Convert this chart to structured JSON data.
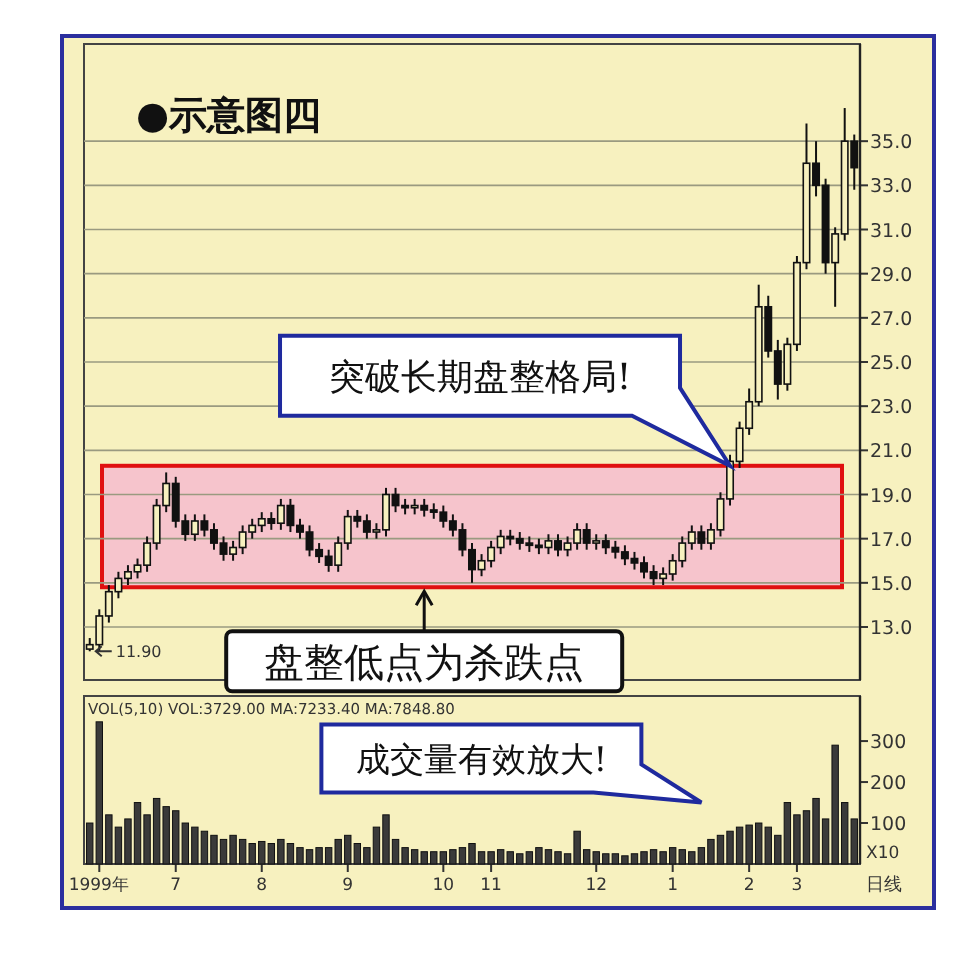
{
  "chart_data": [
    {
      "type": "candlestick",
      "title": "●示意图四",
      "categories": [
        null,
        null,
        null,
        null,
        null,
        null,
        null,
        null,
        null,
        null,
        null,
        null,
        null,
        null,
        null,
        null,
        null,
        null,
        null,
        null,
        null,
        null,
        null,
        null,
        null,
        null,
        null,
        null,
        null,
        null,
        null,
        null,
        null,
        null,
        null,
        null,
        null,
        null,
        null,
        null,
        null,
        null,
        null,
        null,
        null,
        null,
        null,
        null,
        null,
        null,
        null,
        null,
        null,
        null,
        null,
        null,
        null,
        null,
        null,
        null,
        null,
        null,
        null,
        null,
        null,
        null,
        null,
        null,
        null,
        null,
        null,
        null,
        null,
        null,
        null,
        null,
        null,
        null,
        null,
        null,
        null
      ],
      "ohlc": [
        [
          12.0,
          12.5,
          11.9,
          12.2
        ],
        [
          12.2,
          13.8,
          11.9,
          13.5
        ],
        [
          13.5,
          14.9,
          13.2,
          14.6
        ],
        [
          14.6,
          15.5,
          14.3,
          15.2
        ],
        [
          15.2,
          15.8,
          14.9,
          15.5
        ],
        [
          15.5,
          16.1,
          15.2,
          15.8
        ],
        [
          15.8,
          17.1,
          15.5,
          16.8
        ],
        [
          16.8,
          18.8,
          16.5,
          18.5
        ],
        [
          18.5,
          20.0,
          18.2,
          19.5
        ],
        [
          19.5,
          19.8,
          17.5,
          17.8
        ],
        [
          17.8,
          18.1,
          16.9,
          17.2
        ],
        [
          17.2,
          18.1,
          16.9,
          17.8
        ],
        [
          17.8,
          18.1,
          17.1,
          17.4
        ],
        [
          17.4,
          17.7,
          16.5,
          16.8
        ],
        [
          16.8,
          17.1,
          16.0,
          16.3
        ],
        [
          16.3,
          16.9,
          16.0,
          16.6
        ],
        [
          16.6,
          17.6,
          16.3,
          17.3
        ],
        [
          17.3,
          17.9,
          17.0,
          17.6
        ],
        [
          17.6,
          18.2,
          17.3,
          17.9
        ],
        [
          17.9,
          18.2,
          17.4,
          17.7
        ],
        [
          17.7,
          18.8,
          17.4,
          18.5
        ],
        [
          18.5,
          18.8,
          17.3,
          17.6
        ],
        [
          17.6,
          17.9,
          17.0,
          17.3
        ],
        [
          17.3,
          17.6,
          16.2,
          16.5
        ],
        [
          16.5,
          16.8,
          15.9,
          16.2
        ],
        [
          16.2,
          16.5,
          15.5,
          15.8
        ],
        [
          15.8,
          17.1,
          15.5,
          16.8
        ],
        [
          16.8,
          18.3,
          16.5,
          18.0
        ],
        [
          18.0,
          18.3,
          17.5,
          17.8
        ],
        [
          17.8,
          18.1,
          17.0,
          17.3
        ],
        [
          17.3,
          17.7,
          17.0,
          17.4
        ],
        [
          17.4,
          19.3,
          17.1,
          19.0
        ],
        [
          19.0,
          19.3,
          18.2,
          18.5
        ],
        [
          18.5,
          18.8,
          18.1,
          18.4
        ],
        [
          18.4,
          18.8,
          18.1,
          18.5
        ],
        [
          18.5,
          18.8,
          18.0,
          18.3
        ],
        [
          18.3,
          18.6,
          17.9,
          18.2
        ],
        [
          18.2,
          18.5,
          17.5,
          17.8
        ],
        [
          17.8,
          18.1,
          17.1,
          17.4
        ],
        [
          17.4,
          17.7,
          16.2,
          16.5
        ],
        [
          16.5,
          16.8,
          15.0,
          15.6
        ],
        [
          15.6,
          16.3,
          15.3,
          16.0
        ],
        [
          16.0,
          16.9,
          15.7,
          16.6
        ],
        [
          16.6,
          17.4,
          16.3,
          17.1
        ],
        [
          17.1,
          17.4,
          16.7,
          17.0
        ],
        [
          17.0,
          17.3,
          16.5,
          16.8
        ],
        [
          16.8,
          17.1,
          16.4,
          16.7
        ],
        [
          16.7,
          17.0,
          16.3,
          16.6
        ],
        [
          16.6,
          17.2,
          16.3,
          16.9
        ],
        [
          16.9,
          17.2,
          16.2,
          16.5
        ],
        [
          16.5,
          17.1,
          16.2,
          16.8
        ],
        [
          16.8,
          17.7,
          16.5,
          17.4
        ],
        [
          17.4,
          17.7,
          16.5,
          16.8
        ],
        [
          16.8,
          17.2,
          16.5,
          16.9
        ],
        [
          16.9,
          17.2,
          16.3,
          16.6
        ],
        [
          16.6,
          16.9,
          16.1,
          16.4
        ],
        [
          16.4,
          16.7,
          15.8,
          16.1
        ],
        [
          16.1,
          16.4,
          15.6,
          15.9
        ],
        [
          15.9,
          16.2,
          15.2,
          15.5
        ],
        [
          15.5,
          15.8,
          14.9,
          15.2
        ],
        [
          15.2,
          15.7,
          14.9,
          15.4
        ],
        [
          15.4,
          16.3,
          15.1,
          16.0
        ],
        [
          16.0,
          17.1,
          15.7,
          16.8
        ],
        [
          16.8,
          17.6,
          16.5,
          17.3
        ],
        [
          17.3,
          17.6,
          16.5,
          16.8
        ],
        [
          16.8,
          17.7,
          16.5,
          17.4
        ],
        [
          17.4,
          19.1,
          17.1,
          18.8
        ],
        [
          18.8,
          20.8,
          18.5,
          20.5
        ],
        [
          20.5,
          22.3,
          20.2,
          22.0
        ],
        [
          22.0,
          23.8,
          21.7,
          23.2
        ],
        [
          23.2,
          28.5,
          23.0,
          27.5
        ],
        [
          27.5,
          28.0,
          25.2,
          25.5
        ],
        [
          25.5,
          26.0,
          23.3,
          24.0
        ],
        [
          24.0,
          26.1,
          23.7,
          25.8
        ],
        [
          25.8,
          29.8,
          25.5,
          29.5
        ],
        [
          29.5,
          35.8,
          29.2,
          34.0
        ],
        [
          34.0,
          35.0,
          32.5,
          33.0
        ],
        [
          33.0,
          33.3,
          29.0,
          29.5
        ],
        [
          29.5,
          31.1,
          27.5,
          30.8
        ],
        [
          30.8,
          36.5,
          30.5,
          35.0
        ],
        [
          35.0,
          35.3,
          32.8,
          33.8
        ]
      ],
      "ylim": [
        10.6,
        39.4
      ],
      "yticks": [
        {
          "value": 13,
          "label": "13.0"
        },
        {
          "value": 15,
          "label": "15.0"
        },
        {
          "value": 17,
          "label": "17.0"
        },
        {
          "value": 19,
          "label": "19.0"
        },
        {
          "value": 21,
          "label": "21.0"
        },
        {
          "value": 23,
          "label": "23.0"
        },
        {
          "value": 25,
          "label": "25.0"
        },
        {
          "value": 27,
          "label": "27.0"
        },
        {
          "value": 29,
          "label": "29.0"
        },
        {
          "value": 31,
          "label": "31.0"
        },
        {
          "value": 33,
          "label": "33.0"
        },
        {
          "value": 35,
          "label": "35.0"
        }
      ],
      "tick_labels": "y",
      "grid": "y",
      "bands": [
        {
          "axis": "y",
          "from": 14.8,
          "to": 20.3,
          "color": "#f6c4cc"
        }
      ],
      "annotations": [
        "突破长期盘整格局!",
        "盘整低点为杀跌点",
        "11.90"
      ]
    },
    {
      "type": "bar",
      "color": "#3a3a3a",
      "categories": [
        null,
        "1999年",
        null,
        null,
        null,
        null,
        null,
        null,
        null,
        "7",
        null,
        null,
        null,
        null,
        null,
        null,
        null,
        null,
        "8",
        null,
        null,
        null,
        null,
        null,
        null,
        null,
        null,
        "9",
        null,
        null,
        null,
        null,
        null,
        null,
        null,
        null,
        null,
        "10",
        null,
        null,
        null,
        null,
        "11",
        null,
        null,
        null,
        null,
        null,
        null,
        null,
        null,
        null,
        null,
        "12",
        null,
        null,
        null,
        null,
        null,
        null,
        null,
        "1",
        null,
        null,
        null,
        null,
        null,
        null,
        null,
        "2",
        null,
        null,
        null,
        null,
        "3",
        null,
        null,
        null,
        null,
        null,
        null
      ],
      "values": [
        100,
        347,
        120,
        90,
        110,
        150,
        120,
        160,
        140,
        130,
        100,
        90,
        80,
        70,
        60,
        70,
        60,
        50,
        55,
        50,
        60,
        50,
        40,
        35,
        40,
        40,
        60,
        70,
        50,
        40,
        90,
        120,
        60,
        40,
        35,
        30,
        30,
        30,
        35,
        40,
        50,
        30,
        30,
        35,
        30,
        25,
        30,
        40,
        35,
        30,
        25,
        80,
        35,
        30,
        25,
        25,
        20,
        25,
        30,
        35,
        30,
        40,
        35,
        30,
        40,
        60,
        70,
        80,
        90,
        95,
        100,
        90,
        70,
        150,
        120,
        130,
        160,
        110,
        290,
        150,
        110
      ],
      "ylim": [
        0,
        410
      ],
      "yticks": [
        100,
        200,
        300
      ],
      "annotations": [
        "VOL(5,10) VOL:3729.00 MA:7233.40 MA:7848.80",
        "X10",
        "日线",
        "成交量有效放大!"
      ]
    }
  ]
}
